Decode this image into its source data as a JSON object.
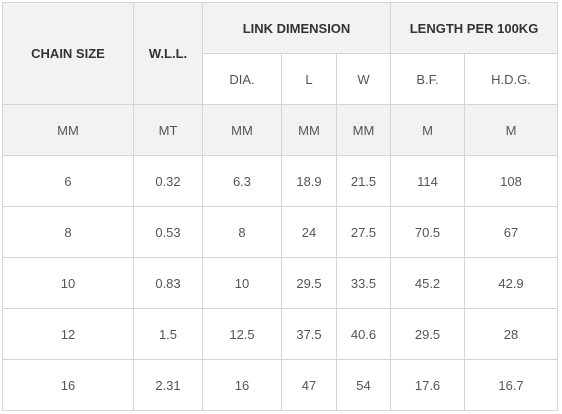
{
  "table": {
    "header": [
      "CHAIN SIZE",
      "W.L.L.",
      "LINK DIMENSION",
      "LENGTH PER 100KG"
    ],
    "subheader": [
      "DIA.",
      "L",
      "W",
      "B.F.",
      "H.D.G."
    ],
    "units": [
      "MM",
      "MT",
      "MM",
      "MM",
      "MM",
      "M",
      "M"
    ],
    "rows": [
      [
        "6",
        "0.32",
        "6.3",
        "18.9",
        "21.5",
        "114",
        "108"
      ],
      [
        "8",
        "0.53",
        "8",
        "24",
        "27.5",
        "70.5",
        "67"
      ],
      [
        "10",
        "0.83",
        "10",
        "29.5",
        "33.5",
        "45.2",
        "42.9"
      ],
      [
        "12",
        "1.5",
        "12.5",
        "37.5",
        "40.6",
        "29.5",
        "28"
      ],
      [
        "16",
        "2.31",
        "16",
        "47",
        "54",
        "17.6",
        "16.7"
      ]
    ]
  }
}
